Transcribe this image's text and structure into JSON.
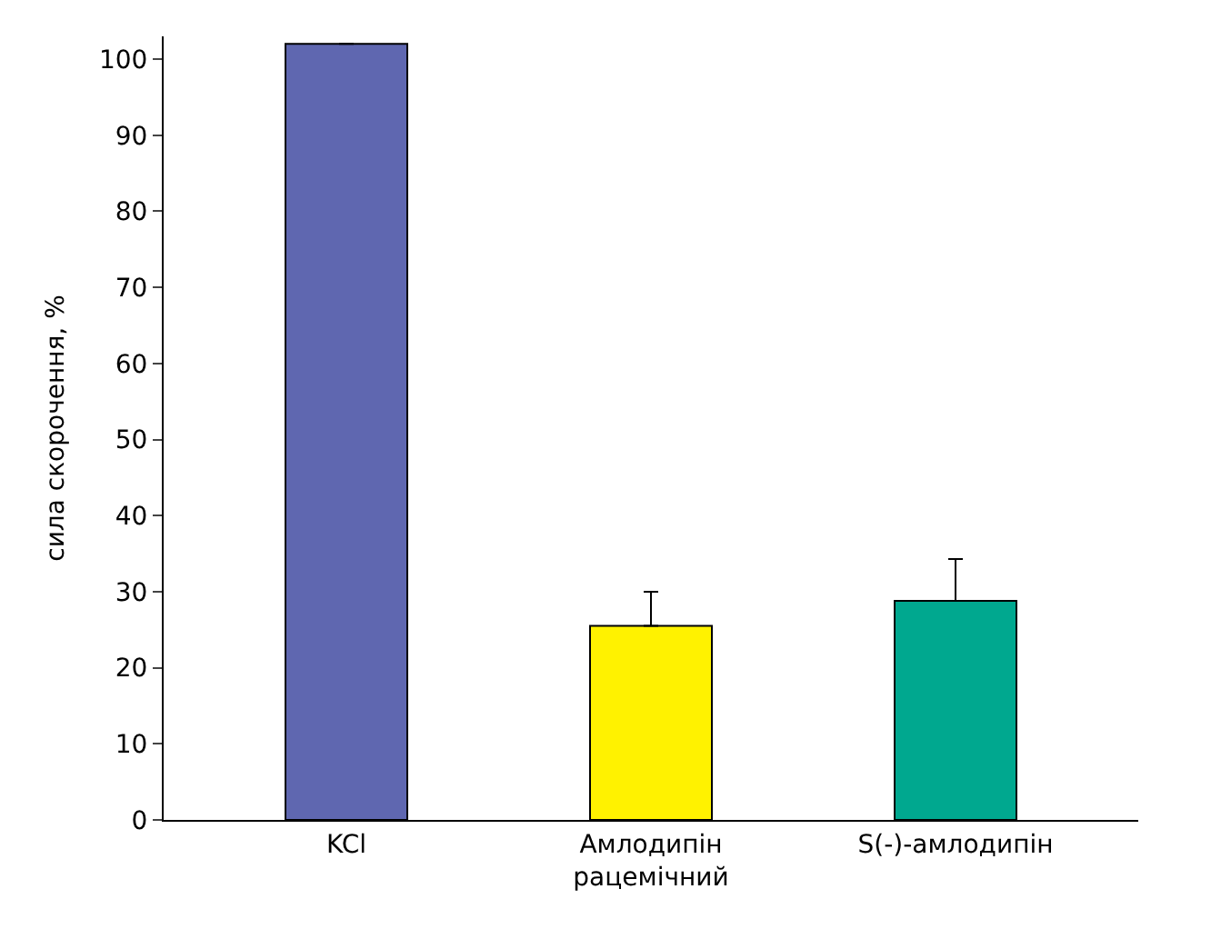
{
  "chart_data": {
    "type": "bar",
    "ylabel": "сила скорочення, %",
    "categories": [
      "KCl",
      "Амлодипін\nрацемічний",
      "S(-)-амлодипін"
    ],
    "values": [
      102,
      25.5,
      28.8
    ],
    "colors": [
      "#5f67b0",
      "#fff200",
      "#00a88f"
    ],
    "errors": [
      null,
      [
        25.5,
        30
      ],
      [
        28.8,
        34.3
      ]
    ],
    "ylim": [
      0,
      103
    ],
    "yticks": [
      0,
      10,
      20,
      30,
      40,
      50,
      60,
      70,
      80,
      90,
      100
    ]
  }
}
